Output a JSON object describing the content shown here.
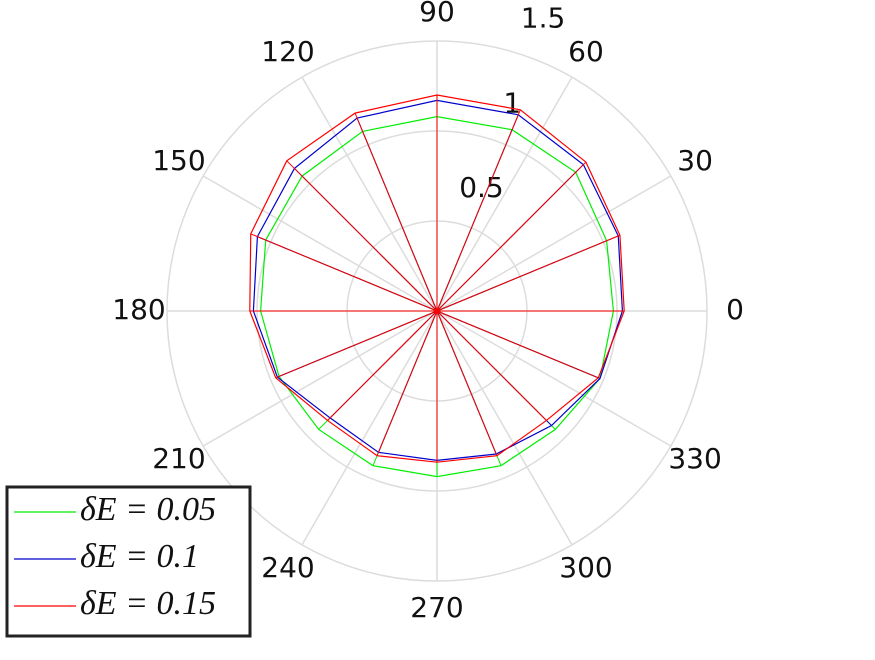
{
  "chart_data": {
    "type": "polar",
    "theta": [
      0,
      22.5,
      45,
      67.5,
      90,
      112.5,
      135,
      157.5,
      180,
      202.5,
      225,
      247.5,
      270,
      292.5,
      315,
      337.5
    ],
    "series": [
      {
        "name": "δE = 0.05",
        "color": "#00ee00",
        "values": [
          0.98,
          1.02,
          1.09,
          1.09,
          1.08,
          1.08,
          1.06,
          1.03,
          0.98,
          0.95,
          0.93,
          0.93,
          0.92,
          0.93,
          0.93,
          0.98
        ]
      },
      {
        "name": "δE = 0.1",
        "color": "#0000cc",
        "values": [
          1.03,
          1.09,
          1.15,
          1.18,
          1.17,
          1.16,
          1.12,
          1.08,
          1.02,
          0.96,
          0.84,
          0.85,
          0.83,
          0.86,
          0.9,
          0.98
        ]
      },
      {
        "name": "δE = 0.15",
        "color": "#ff0000",
        "values": [
          1.04,
          1.1,
          1.17,
          1.21,
          1.2,
          1.19,
          1.18,
          1.12,
          1.04,
          0.97,
          0.86,
          0.87,
          0.84,
          0.87,
          0.86,
          0.97
        ]
      }
    ],
    "rlim": [
      0,
      1.5
    ],
    "rticks": [
      0.5,
      1,
      1.5
    ],
    "thetaticks": [
      0,
      30,
      60,
      90,
      120,
      150,
      180,
      210,
      240,
      270,
      300,
      330
    ],
    "grid": true,
    "legend": "lower left"
  }
}
